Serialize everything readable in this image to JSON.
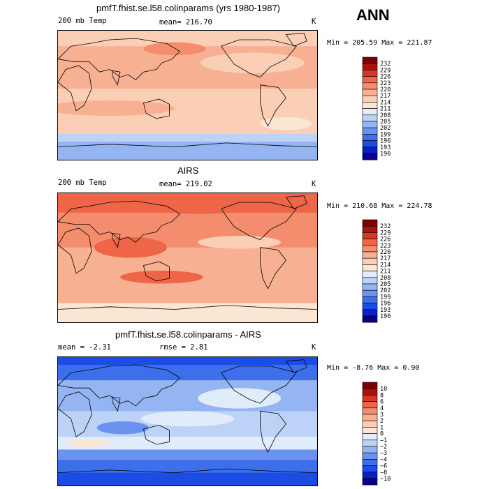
{
  "season": "ANN",
  "panels": [
    {
      "title": "pmfT.fhist.se.l58.colinparams (yrs 1980-1987)",
      "left_label": "200 mb Temp",
      "center_label": "mean= 216.70",
      "unit": "K",
      "minmax": "Min = 205.59 Max = 221.87"
    },
    {
      "title": "AIRS",
      "left_label": "200 mb Temp",
      "center_label": "mean= 219.02",
      "unit": "K",
      "minmax": "Min = 210.68 Max = 224.78"
    },
    {
      "title": "pmfT.fhist.se.l58.colinparams - AIRS",
      "left_label": "mean =   -2.31",
      "center_label": "rmse =    2.81",
      "unit": "K",
      "minmax": "Min =  -8.76 Max =    0.90"
    }
  ],
  "chart_data": [
    {
      "type": "heatmap",
      "title": "pmfT.fhist.se.l58.colinparams (yrs 1980-1987)",
      "variable": "200 mb Temp",
      "units": "K",
      "mean": 216.7,
      "min": 205.59,
      "max": 221.87,
      "colorbar_levels": [
        190,
        193,
        196,
        199,
        202,
        205,
        208,
        211,
        214,
        217,
        220,
        223,
        226,
        229,
        232
      ],
      "colorbar_colors": [
        "#08008c",
        "#0a1fc8",
        "#1b4ce6",
        "#3d6fea",
        "#6a92ee",
        "#95b4f2",
        "#bdd2f7",
        "#e1ecfb",
        "#fbe6d3",
        "#fbcfb6",
        "#f8b093",
        "#f48c6e",
        "#ee6547",
        "#d73823",
        "#a8140c",
        "#7f0000"
      ]
    },
    {
      "type": "heatmap",
      "title": "AIRS",
      "variable": "200 mb Temp",
      "units": "K",
      "mean": 219.02,
      "min": 210.68,
      "max": 224.78,
      "colorbar_levels": [
        190,
        193,
        196,
        199,
        202,
        205,
        208,
        211,
        214,
        217,
        220,
        223,
        226,
        229,
        232
      ],
      "colorbar_colors": [
        "#08008c",
        "#0a1fc8",
        "#1b4ce6",
        "#3d6fea",
        "#6a92ee",
        "#95b4f2",
        "#bdd2f7",
        "#e1ecfb",
        "#fbe6d3",
        "#fbcfb6",
        "#f8b093",
        "#f48c6e",
        "#ee6547",
        "#d73823",
        "#a8140c",
        "#7f0000"
      ]
    },
    {
      "type": "heatmap",
      "title": "pmfT.fhist.se.l58.colinparams - AIRS",
      "units": "K",
      "mean": -2.31,
      "rmse": 2.81,
      "min": -8.76,
      "max": 0.9,
      "colorbar_levels": [
        -10,
        -8,
        -6,
        -4,
        -3,
        -2,
        -1,
        0,
        1,
        2,
        3,
        4,
        6,
        8,
        10
      ],
      "colorbar_colors": [
        "#08008c",
        "#0a1fc8",
        "#1b4ce6",
        "#3d6fea",
        "#6a92ee",
        "#95b4f2",
        "#bdd2f7",
        "#e1ecfb",
        "#fbe6d3",
        "#fbcfb6",
        "#f8b093",
        "#f48c6e",
        "#ee6547",
        "#d73823",
        "#a8140c",
        "#7f0000"
      ]
    }
  ]
}
